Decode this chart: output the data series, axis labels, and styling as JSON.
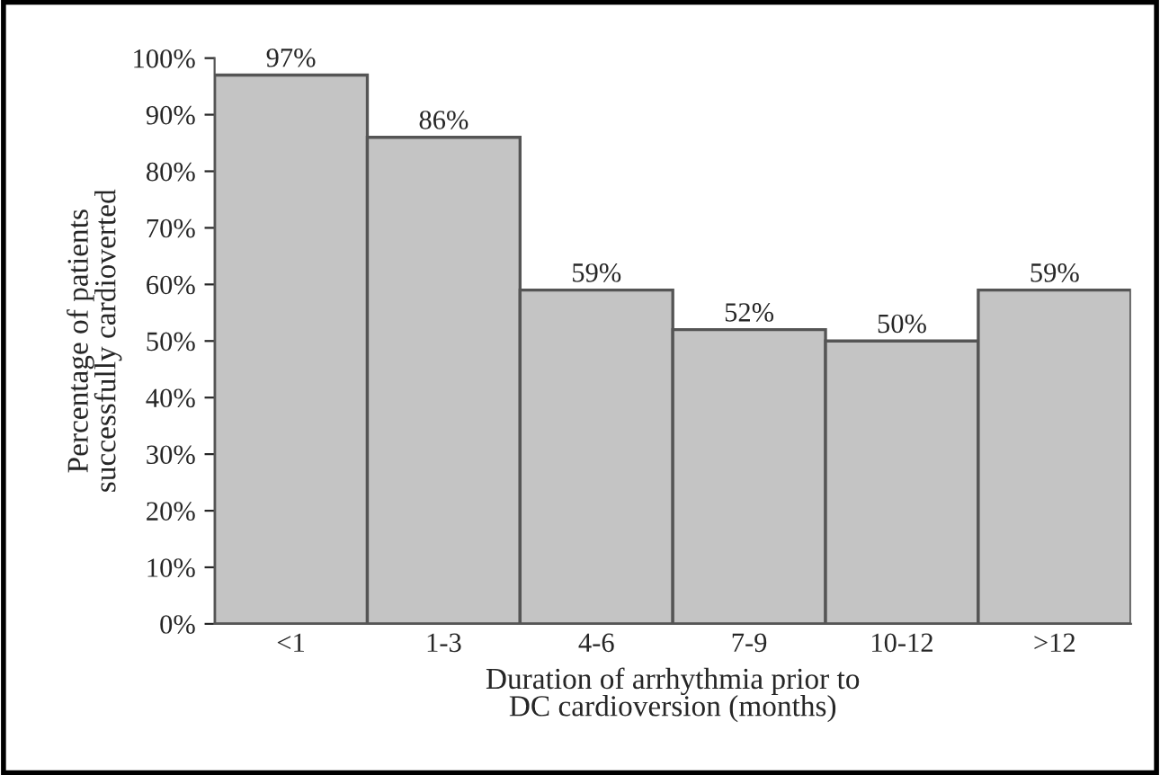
{
  "chart_data": {
    "type": "bar",
    "xlabel": "Duration of arrhythmia prior to\nDC cardioversion (months)",
    "ylabel": "Percentage of patients\nsuccessfully cardioverted",
    "categories": [
      "<1",
      "1-3",
      "4-6",
      "7-9",
      "10-12",
      ">12"
    ],
    "values": [
      97,
      86,
      59,
      52,
      50,
      59
    ],
    "value_labels": [
      "97%",
      "86%",
      "59%",
      "52%",
      "50%",
      "59%"
    ],
    "color": "#c4c4c4",
    "ylim": [
      0,
      100
    ],
    "yticks": [
      {
        "value": 0,
        "label": "0%"
      },
      {
        "value": 10,
        "label": "10%"
      },
      {
        "value": 20,
        "label": "20%"
      },
      {
        "value": 30,
        "label": "30%"
      },
      {
        "value": 40,
        "label": "40%"
      },
      {
        "value": 50,
        "label": "50%"
      },
      {
        "value": 60,
        "label": "60%"
      },
      {
        "value": 70,
        "label": "70%"
      },
      {
        "value": 80,
        "label": "80%"
      },
      {
        "value": 90,
        "label": "90%"
      },
      {
        "value": 100,
        "label": "100%"
      }
    ],
    "grid": false
  }
}
